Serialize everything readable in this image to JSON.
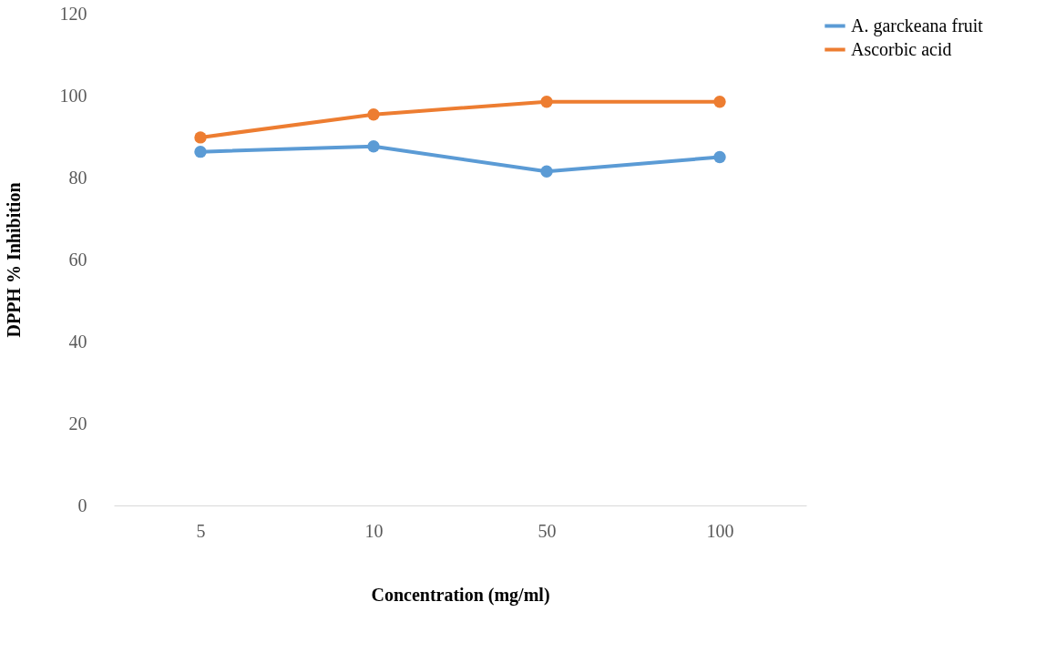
{
  "chart_data": {
    "type": "line",
    "xlabel": "Concentration (mg/ml)",
    "ylabel": "DPPH % Inhibition",
    "categories": [
      "5",
      "10",
      "50",
      "100"
    ],
    "series": [
      {
        "name": "A. garckeana fruit",
        "color": "#5b9bd5",
        "values": [
          86.3,
          87.6,
          81.5,
          85.0
        ]
      },
      {
        "name": "Ascorbic acid",
        "color": "#ed7d31",
        "values": [
          89.8,
          95.4,
          98.5,
          98.5
        ]
      }
    ],
    "ylim": [
      0,
      120
    ],
    "yticks": [
      0,
      20,
      40,
      60,
      80,
      100,
      120
    ],
    "grid": false,
    "legend": "right",
    "marker": "circle",
    "line_style": "solid"
  }
}
